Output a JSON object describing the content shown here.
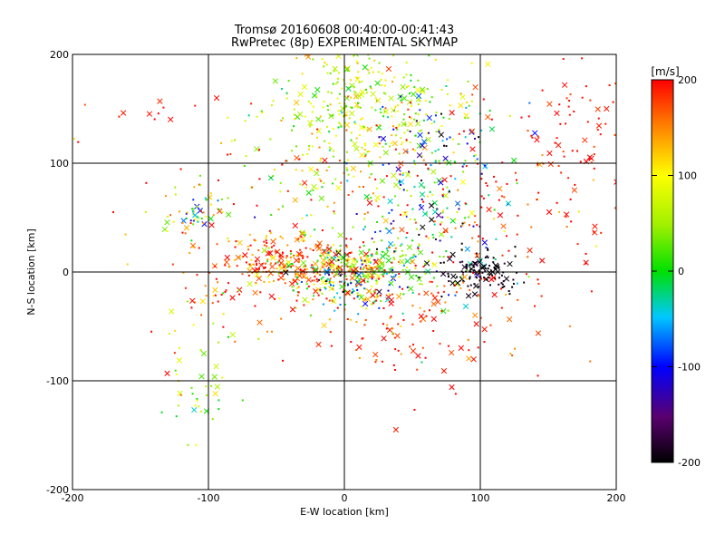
{
  "chart_data": {
    "type": "scatter",
    "title": "Tromsø 20160608 00:40:00-00:41:43",
    "subtitle": "RwPretec (8p) EXPERIMENTAL SKYMAP",
    "xlabel": "E-W location [km]",
    "ylabel": "N-S location [km]",
    "xlim": [
      -200,
      200
    ],
    "ylim": [
      -200,
      200
    ],
    "xticks": [
      "-200",
      "-100",
      "0",
      "100",
      "200"
    ],
    "yticks": [
      "-200",
      "-100",
      "0",
      "100",
      "200"
    ],
    "grid": true,
    "colorbar": {
      "label": "[m/s]",
      "min": -200,
      "max": 200,
      "ticks": [
        "200",
        "100",
        "0",
        "-100",
        "-200"
      ],
      "colormap": "rainbow (black-purple-blue-cyan-green-yellow-red)"
    },
    "marker_types": [
      "dot",
      "cross"
    ],
    "clusters": [
      {
        "x": 10,
        "y": 150,
        "sx": 35,
        "sy": 40,
        "n": 380,
        "v": 70,
        "vs": 45
      },
      {
        "x": -40,
        "y": 8,
        "sx": 28,
        "sy": 14,
        "n": 230,
        "v": 170,
        "vs": 40
      },
      {
        "x": 5,
        "y": -5,
        "sx": 22,
        "sy": 18,
        "n": 250,
        "v": 40,
        "vs": 120
      },
      {
        "x": 20,
        "y": 8,
        "sx": 30,
        "sy": 10,
        "n": 120,
        "v": 30,
        "vs": 40
      },
      {
        "x": 65,
        "y": 75,
        "sx": 25,
        "sy": 45,
        "n": 220,
        "v": -40,
        "vs": 90
      },
      {
        "x": 100,
        "y": 0,
        "sx": 15,
        "sy": 10,
        "n": 110,
        "v": -195,
        "vs": 10
      },
      {
        "x": 110,
        "y": 70,
        "sx": 55,
        "sy": 55,
        "n": 150,
        "v": 190,
        "vs": 30
      },
      {
        "x": 50,
        "y": -40,
        "sx": 40,
        "sy": 30,
        "n": 120,
        "v": 185,
        "vs": 30
      },
      {
        "x": -105,
        "y": 55,
        "sx": 10,
        "sy": 10,
        "n": 45,
        "v": 40,
        "vs": 80
      },
      {
        "x": -110,
        "y": -105,
        "sx": 12,
        "sy": 30,
        "n": 45,
        "v": 60,
        "vs": 40
      },
      {
        "x": 180,
        "y": 130,
        "sx": 15,
        "sy": 40,
        "n": 50,
        "v": 195,
        "vs": 15
      },
      {
        "x": -140,
        "y": 150,
        "sx": 15,
        "sy": 5,
        "n": 10,
        "v": 195,
        "vs": 10
      },
      {
        "x": -90,
        "y": -20,
        "sx": 20,
        "sy": 25,
        "n": 35,
        "v": 180,
        "vs": 40
      },
      {
        "x": 0,
        "y": 60,
        "sx": 80,
        "sy": 60,
        "n": 180,
        "v": 150,
        "vs": 80
      }
    ]
  }
}
